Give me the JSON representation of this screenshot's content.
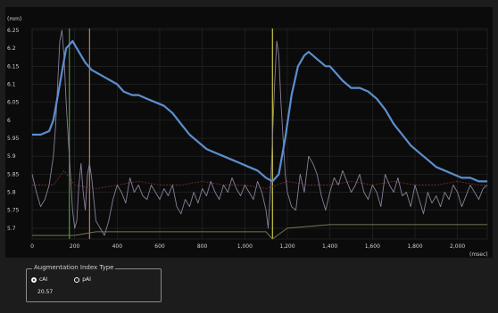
{
  "chart_data": {
    "type": "line",
    "y_unit": "(mm)",
    "x_unit": "(msec)",
    "y_ticks": [
      "6.25",
      "6.2",
      "6.15",
      "6.1",
      "6.05",
      "6",
      "5.95",
      "5.9",
      "5.85",
      "5.8",
      "5.75",
      "5.7"
    ],
    "y_tick_values": [
      6.25,
      6.2,
      6.15,
      6.1,
      6.05,
      6,
      5.95,
      5.9,
      5.85,
      5.8,
      5.75,
      5.7
    ],
    "x_ticks": [
      "0",
      "200",
      "400",
      "600",
      "800",
      "1,000",
      "1,200",
      "1,400",
      "1,600",
      "1,800",
      "2,000"
    ],
    "x_tick_values": [
      0,
      200,
      400,
      600,
      800,
      1000,
      1200,
      1400,
      1600,
      1800,
      2000
    ],
    "xlim": [
      0,
      2140
    ],
    "ylim": [
      5.67,
      6.25
    ],
    "grid": true,
    "colors": {
      "diameter": "#5b8fcf",
      "derivative": "#8a7f9a",
      "baseline": "#7a2a2a",
      "lower": "#6f7a55",
      "marker_green": "#4f9a3a",
      "marker_orange": "#c77a55",
      "marker_yellow": "#c9c84a"
    },
    "markers": [
      {
        "x": 175,
        "color": "#4f9a3a"
      },
      {
        "x": 270,
        "color": "#c77a55"
      },
      {
        "x": 1130,
        "color": "#c9c84a"
      }
    ],
    "series": [
      {
        "key": "diameter",
        "x": [
          0,
          40,
          80,
          100,
          130,
          160,
          190,
          220,
          250,
          280,
          310,
          340,
          370,
          400,
          430,
          470,
          500,
          540,
          580,
          620,
          660,
          700,
          740,
          780,
          820,
          860,
          900,
          940,
          980,
          1020,
          1060,
          1100,
          1130,
          1160,
          1190,
          1220,
          1250,
          1280,
          1300,
          1320,
          1340,
          1360,
          1380,
          1400,
          1430,
          1460,
          1500,
          1540,
          1580,
          1620,
          1660,
          1700,
          1740,
          1780,
          1820,
          1860,
          1900,
          1940,
          1980,
          2020,
          2060,
          2100,
          2140
        ],
        "y": [
          5.96,
          5.96,
          5.97,
          6.0,
          6.1,
          6.2,
          6.22,
          6.19,
          6.16,
          6.14,
          6.13,
          6.12,
          6.11,
          6.1,
          6.08,
          6.07,
          6.07,
          6.06,
          6.05,
          6.04,
          6.02,
          5.99,
          5.96,
          5.94,
          5.92,
          5.91,
          5.9,
          5.89,
          5.88,
          5.87,
          5.86,
          5.84,
          5.83,
          5.85,
          5.95,
          6.07,
          6.15,
          6.18,
          6.19,
          6.18,
          6.17,
          6.16,
          6.15,
          6.15,
          6.13,
          6.11,
          6.09,
          6.09,
          6.08,
          6.06,
          6.03,
          5.99,
          5.96,
          5.93,
          5.91,
          5.89,
          5.87,
          5.86,
          5.85,
          5.84,
          5.84,
          5.83,
          5.83
        ]
      },
      {
        "key": "derivative",
        "x": [
          0,
          20,
          40,
          60,
          80,
          100,
          110,
          120,
          130,
          140,
          150,
          160,
          170,
          180,
          190,
          200,
          210,
          220,
          230,
          240,
          250,
          260,
          270,
          280,
          290,
          300,
          320,
          340,
          360,
          380,
          400,
          420,
          440,
          460,
          480,
          500,
          520,
          540,
          560,
          580,
          600,
          620,
          640,
          660,
          680,
          700,
          720,
          740,
          760,
          780,
          800,
          820,
          840,
          860,
          880,
          900,
          920,
          940,
          960,
          980,
          1000,
          1020,
          1040,
          1060,
          1080,
          1100,
          1110,
          1120,
          1130,
          1140,
          1150,
          1160,
          1170,
          1180,
          1190,
          1200,
          1220,
          1240,
          1260,
          1280,
          1300,
          1320,
          1340,
          1360,
          1380,
          1400,
          1420,
          1440,
          1460,
          1480,
          1500,
          1520,
          1540,
          1560,
          1580,
          1600,
          1620,
          1640,
          1660,
          1680,
          1700,
          1720,
          1740,
          1760,
          1780,
          1800,
          1820,
          1840,
          1860,
          1880,
          1900,
          1920,
          1940,
          1960,
          1980,
          2000,
          2020,
          2040,
          2060,
          2080,
          2100,
          2120,
          2140
        ],
        "y": [
          5.85,
          5.8,
          5.76,
          5.78,
          5.82,
          5.9,
          5.98,
          6.1,
          6.22,
          6.25,
          6.18,
          6.05,
          5.95,
          5.85,
          5.75,
          5.7,
          5.72,
          5.82,
          5.88,
          5.8,
          5.75,
          5.85,
          5.88,
          5.84,
          5.78,
          5.72,
          5.7,
          5.68,
          5.72,
          5.78,
          5.82,
          5.8,
          5.77,
          5.84,
          5.8,
          5.82,
          5.79,
          5.78,
          5.82,
          5.8,
          5.78,
          5.81,
          5.79,
          5.82,
          5.76,
          5.74,
          5.78,
          5.76,
          5.8,
          5.77,
          5.81,
          5.79,
          5.83,
          5.8,
          5.78,
          5.82,
          5.8,
          5.84,
          5.81,
          5.79,
          5.82,
          5.8,
          5.78,
          5.83,
          5.8,
          5.75,
          5.7,
          5.8,
          5.95,
          6.1,
          6.22,
          6.18,
          6.05,
          5.95,
          5.85,
          5.8,
          5.76,
          5.75,
          5.85,
          5.8,
          5.9,
          5.88,
          5.85,
          5.79,
          5.75,
          5.8,
          5.84,
          5.82,
          5.86,
          5.83,
          5.8,
          5.82,
          5.85,
          5.8,
          5.78,
          5.82,
          5.8,
          5.76,
          5.85,
          5.82,
          5.8,
          5.84,
          5.79,
          5.8,
          5.76,
          5.82,
          5.78,
          5.74,
          5.8,
          5.77,
          5.79,
          5.76,
          5.8,
          5.78,
          5.82,
          5.8,
          5.76,
          5.79,
          5.82,
          5.8,
          5.78,
          5.81,
          5.82
        ]
      },
      {
        "key": "baseline",
        "x": [
          0,
          100,
          150,
          200,
          300,
          400,
          500,
          600,
          700,
          800,
          900,
          1000,
          1100,
          1200,
          1300,
          1400,
          1500,
          1600,
          1700,
          1800,
          1900,
          2000,
          2100,
          2140
        ],
        "y": [
          5.82,
          5.82,
          5.86,
          5.82,
          5.81,
          5.82,
          5.83,
          5.82,
          5.82,
          5.83,
          5.82,
          5.82,
          5.81,
          5.83,
          5.82,
          5.82,
          5.83,
          5.82,
          5.83,
          5.82,
          5.82,
          5.83,
          5.82,
          5.82
        ]
      },
      {
        "key": "lower",
        "x": [
          0,
          100,
          200,
          300,
          400,
          600,
          800,
          1000,
          1100,
          1130,
          1200,
          1400,
          1600,
          1800,
          2000,
          2140
        ],
        "y": [
          5.68,
          5.68,
          5.68,
          5.69,
          5.69,
          5.69,
          5.69,
          5.69,
          5.69,
          5.67,
          5.7,
          5.71,
          5.71,
          5.71,
          5.71,
          5.71
        ]
      }
    ]
  },
  "augmentation": {
    "title": "Augmentation Index Type",
    "options": [
      {
        "label": "cAI",
        "checked": true
      },
      {
        "label": "pAI",
        "checked": false
      }
    ],
    "value": "20.57"
  }
}
